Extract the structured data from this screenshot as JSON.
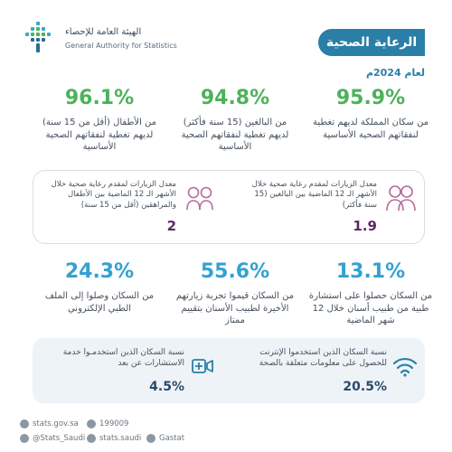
{
  "header": {
    "org_ar": "الهيئة العامة للإحصاء",
    "org_en": "General Authority for Statistics",
    "title": "الرعاية الصحية",
    "year": "لعام 2024م"
  },
  "top_stats": [
    {
      "value": "95.9%",
      "desc": "من سكان المملكة لديهم تغطية لنفقاتهم الصحية الأساسية"
    },
    {
      "value": "94.8%",
      "desc": "من البالغين (15 سنة فأكثر) لديهم تغطية لنفقاتهم الصحية الأساسية"
    },
    {
      "value": "96.1%",
      "desc": "من الأطفال (أقل من 15 سنة) لديهم تغطية لنفقاتهم الصحية الأساسية"
    }
  ],
  "visits": [
    {
      "text": "معدل الزيارات لمقدم رعاية صحية خلال الأشهر الـ 12 الماضية بين البالغين (15 سنة فأكثر)",
      "value": "1.9",
      "icon": "adults-icon"
    },
    {
      "text": "معدل الزيارات لمقدم رعاية صحية خلال الأشهر الـ 12 الماضية بين الأطفال والمراهقين (أقل من 15 سنة)",
      "value": "2",
      "icon": "children-icon"
    }
  ],
  "mid_stats": [
    {
      "value": "13.1%",
      "desc": "من السكان حصلوا على استشارة طبية من طبيب أسنان خلال 12 شهر الماضية"
    },
    {
      "value": "55.6%",
      "desc": "من السكان قيموا تجربة زيارتهم الأخيرة لطبيب الأسنان بتقييم ممتاز"
    },
    {
      "value": "24.3%",
      "desc": "من السكان وصلوا إلى الملف الطبي الإلكتروني"
    }
  ],
  "internet": [
    {
      "text": "نسبة السكان الذين استخدموا الإنترنت للحصول على معلومات متعلقة بالصحة",
      "value": "20.5%",
      "icon": "wifi-icon"
    },
    {
      "text": "نسبة السكان الذين استخدمـوا خدمة الاستشارات عن بعد",
      "value": "4.5%",
      "icon": "telehealth-icon"
    }
  ],
  "footer": {
    "website": "stats.gov.sa",
    "phone": "199009",
    "twitter": "@Stats_Saudi",
    "instagram": "stats.saudi",
    "app": "Gastat"
  }
}
